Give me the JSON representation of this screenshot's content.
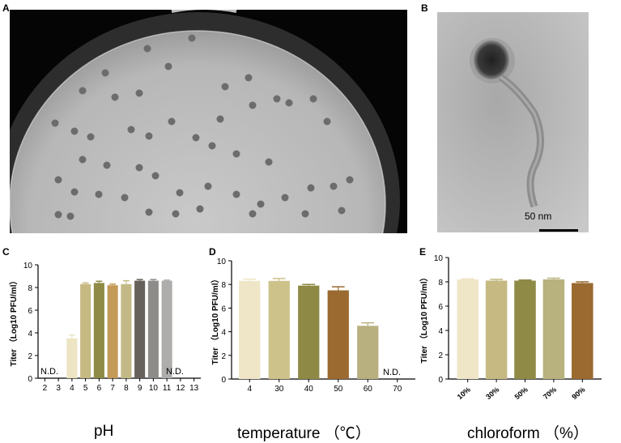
{
  "panels": {
    "a": {
      "letter": "A"
    },
    "b": {
      "letter": "B",
      "scale_bar_label": "50 nm"
    },
    "c": {
      "letter": "C"
    },
    "d": {
      "letter": "D"
    },
    "e": {
      "letter": "E"
    }
  },
  "chart_data": [
    {
      "id": "C",
      "type": "bar",
      "categories": [
        "2",
        "3",
        "4",
        "5",
        "6",
        "7",
        "8",
        "9",
        "10",
        "11",
        "12",
        "13"
      ],
      "values": [
        null,
        null,
        3.5,
        8.3,
        8.4,
        8.2,
        8.3,
        8.6,
        8.6,
        8.6,
        null,
        null
      ],
      "errors": [
        0,
        0,
        0.3,
        0.1,
        0.15,
        0.1,
        0.3,
        0.1,
        0.1,
        0.05,
        0,
        0
      ],
      "colors": [
        "#ffffff",
        "#ffffff",
        "#ece4c2",
        "#c6b982",
        "#8f8a46",
        "#c49a58",
        "#c3b986",
        "#66625b",
        "#8e8c89",
        "#aeadac",
        "#ffffff",
        "#ffffff"
      ],
      "xlabel": "pH",
      "ylabel": "Titer （Log10 PFU/ml）",
      "ylim": [
        0,
        10
      ],
      "yticks": [
        0,
        2,
        4,
        6,
        8,
        10
      ],
      "annotations": [
        "N.D.",
        "N.D."
      ]
    },
    {
      "id": "D",
      "type": "bar",
      "categories": [
        "4",
        "30",
        "40",
        "50",
        "60",
        "70"
      ],
      "values": [
        8.3,
        8.3,
        7.9,
        7.5,
        4.5,
        null
      ],
      "errors": [
        0.15,
        0.2,
        0.1,
        0.3,
        0.25,
        0
      ],
      "colors": [
        "#efe6c8",
        "#cdc289",
        "#8e8a45",
        "#9a6a30",
        "#b9b080",
        "#ffffff"
      ],
      "xlabel": "temperature （℃）",
      "ylabel": "Titer （Log10 PFU/ml）",
      "ylim": [
        0,
        10
      ],
      "yticks": [
        0,
        2,
        4,
        6,
        8,
        10
      ],
      "annotations": [
        "N.D."
      ]
    },
    {
      "id": "E",
      "type": "bar",
      "categories": [
        "10%",
        "30%",
        "50%",
        "70%",
        "90%"
      ],
      "values": [
        8.2,
        8.1,
        8.1,
        8.2,
        7.9
      ],
      "errors": [
        0.05,
        0.1,
        0.05,
        0.1,
        0.1
      ],
      "colors": [
        "#efe6c8",
        "#c6b982",
        "#8f8a46",
        "#b8b27e",
        "#9a6a30"
      ],
      "xlabel": "chloroform （%）",
      "ylabel": "Titer （Log10 PFU/ml）",
      "ylim": [
        0,
        10
      ],
      "yticks": [
        0,
        2,
        4,
        6,
        8,
        10
      ],
      "annotations": []
    }
  ]
}
